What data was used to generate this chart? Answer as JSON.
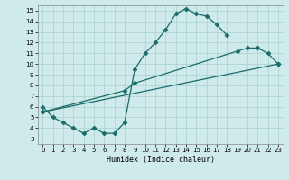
{
  "xlabel": "Humidex (Indice chaleur)",
  "background_color": "#ceeaea",
  "grid_color": "#aacfcf",
  "line_color": "#1a6b6b",
  "xlim": [
    -0.5,
    23.5
  ],
  "ylim": [
    2.5,
    15.5
  ],
  "xticks": [
    0,
    1,
    2,
    3,
    4,
    5,
    6,
    7,
    8,
    9,
    10,
    11,
    12,
    13,
    14,
    15,
    16,
    17,
    18,
    19,
    20,
    21,
    22,
    23
  ],
  "yticks": [
    3,
    4,
    5,
    6,
    7,
    8,
    9,
    10,
    11,
    12,
    13,
    14,
    15
  ],
  "line1_x": [
    0,
    1,
    2,
    3,
    4,
    5,
    6,
    7,
    8,
    9,
    10,
    11,
    12,
    13,
    14,
    15,
    16,
    17,
    18
  ],
  "line1_y": [
    6,
    5,
    4.5,
    4,
    3.5,
    4,
    3.5,
    3.5,
    4.5,
    9.5,
    11,
    12,
    13.2,
    14.7,
    15.2,
    14.7,
    14.5,
    13.7,
    12.7
  ],
  "line2_x": [
    0,
    23
  ],
  "line2_y": [
    5.5,
    10
  ],
  "line3_x": [
    0,
    8,
    9,
    19,
    20,
    21,
    22,
    23
  ],
  "line3_y": [
    5.5,
    7.5,
    8.2,
    11.2,
    11.5,
    11.5,
    11.0,
    10.0
  ],
  "marker": "D",
  "markersize": 2.5,
  "linewidth": 0.9
}
